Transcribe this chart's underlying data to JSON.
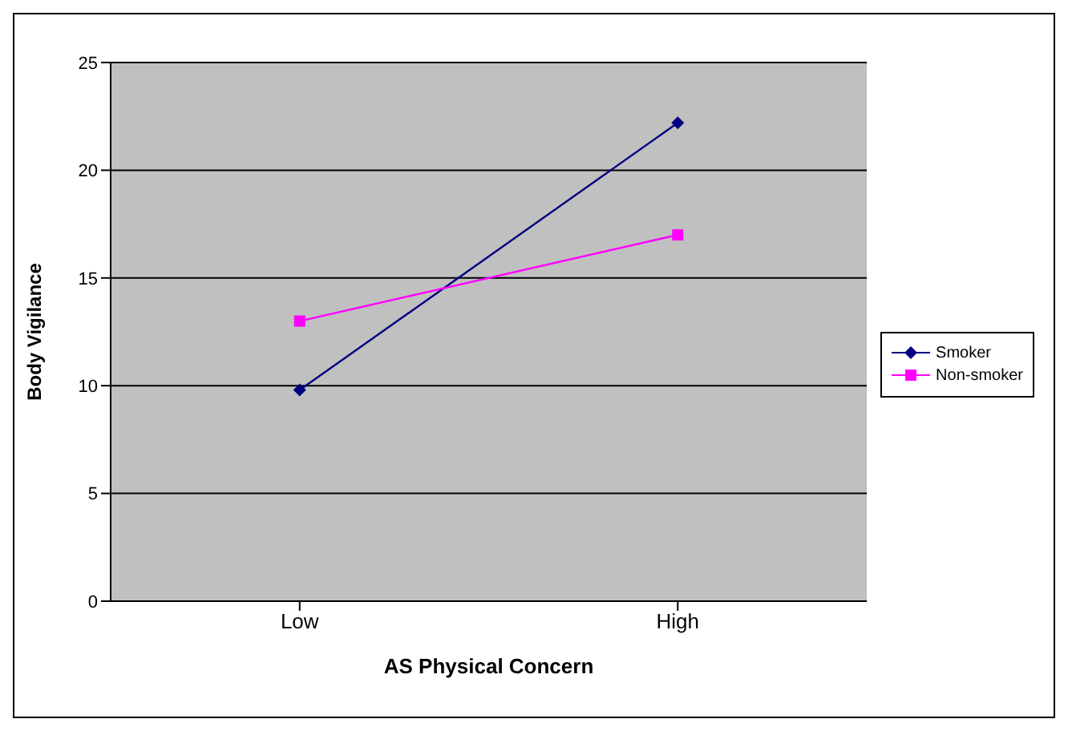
{
  "chart_data": {
    "type": "line",
    "xlabel": "AS Physical Concern",
    "ylabel": "Body Vigilance",
    "categories": [
      "Low",
      "High"
    ],
    "series": [
      {
        "name": "Smoker",
        "color": "#000080",
        "marker": "diamond",
        "values": [
          9.8,
          22.2
        ]
      },
      {
        "name": "Non-smoker",
        "color": "#ff00ff",
        "marker": "square",
        "values": [
          13,
          17
        ]
      }
    ],
    "ylim": [
      0,
      25
    ],
    "yticks": [
      0,
      5,
      10,
      15,
      20,
      25
    ],
    "grid": "y",
    "legend": "right"
  }
}
